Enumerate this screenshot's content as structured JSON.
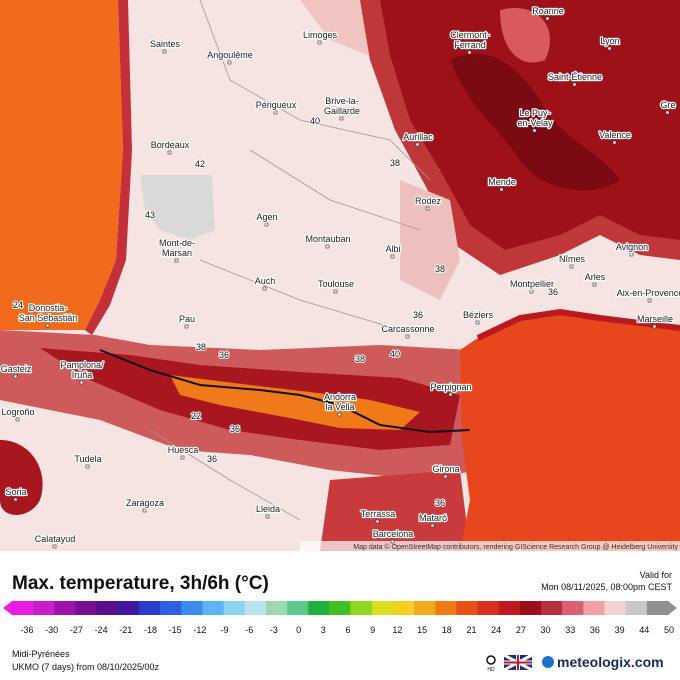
{
  "map": {
    "cities": [
      [
        "Saintes"
      ],
      [
        "Angoulême"
      ],
      [
        "Limoges"
      ],
      [
        "Clermont-",
        "Ferrand"
      ],
      [
        "Roanne"
      ],
      [
        "Lyon"
      ],
      [
        "Saint-Étienne"
      ],
      [
        "Périgueux"
      ],
      [
        "Brive-la-",
        "Gaillarde"
      ],
      [
        "Le Puy-",
        "en-Velay"
      ],
      [
        "Aurillac"
      ],
      [
        "Valence"
      ],
      [
        "Bordeaux"
      ],
      [
        "Mende"
      ],
      [
        "Rodez"
      ],
      [
        "Agen"
      ],
      [
        "Mont-de-",
        "Marsan"
      ],
      [
        "Montauban"
      ],
      [
        "Albi"
      ],
      [
        "Avignon"
      ],
      [
        "Nîmes"
      ],
      [
        "Auch"
      ],
      [
        "Toulouse"
      ],
      [
        "Montpellier"
      ],
      [
        "Arles"
      ],
      [
        "Aix-en-Provence"
      ],
      [
        "Donostia-",
        "San Sebastián"
      ],
      [
        "Pau"
      ],
      [
        "Béziers"
      ],
      [
        "Marseille"
      ],
      [
        "Carcassonne"
      ],
      [
        "Gasteiz"
      ],
      [
        "Pamplona/",
        "Iruña"
      ],
      [
        "Perpignan"
      ],
      [
        "Logroño"
      ],
      [
        "Andorra",
        "la Vella"
      ],
      [
        "Huesca"
      ],
      [
        "Girona"
      ],
      [
        "Tudela"
      ],
      [
        "Soria"
      ],
      [
        "Zaragoza"
      ],
      [
        "Lleida"
      ],
      [
        "Terrassa"
      ],
      [
        "Mataró"
      ],
      [
        "Barcelona"
      ],
      [
        "Calatayud"
      ],
      [
        "Gre"
      ]
    ],
    "values": [
      40,
      42,
      43,
      38,
      38,
      38,
      36,
      38,
      40,
      22,
      36,
      36,
      24,
      36,
      36,
      36
    ],
    "attribution": "Map data © OpenStreetMap contributors, rendering GIScience Research Group @ Heidelberg University"
  },
  "legend": {
    "title": "Max. temperature, 3h/6h (°C)",
    "valid_label": "Valid for",
    "valid_time": "Mon 08/11/2025, 08:00pm CEST",
    "ticks": [
      -36,
      -30,
      -27,
      -24,
      -21,
      -18,
      -15,
      -12,
      -9,
      -6,
      -3,
      0,
      3,
      6,
      9,
      12,
      15,
      18,
      21,
      24,
      27,
      30,
      33,
      36,
      39,
      44,
      50
    ],
    "colors": [
      "#e81ee8",
      "#c81ec8",
      "#9b16a8",
      "#7a1096",
      "#5a0f8c",
      "#3b1a9e",
      "#2a3cc8",
      "#2f62e0",
      "#3c8cf0",
      "#5fb4f5",
      "#8fd0f5",
      "#b8e4f0",
      "#9ed8b0",
      "#5cc88a",
      "#20b040",
      "#40c020",
      "#90d820",
      "#d8e020",
      "#f5d020",
      "#f5a818",
      "#f07a18",
      "#e8501a",
      "#d8301c",
      "#c01820",
      "#9a1018",
      "#b83040",
      "#d86070",
      "#f0a0a8",
      "#f5d0d0",
      "#c8c8c8",
      "#909090"
    ]
  },
  "footer": {
    "region": "Midi-Pyrénées",
    "model": "UKMO (7 days) from 08/10/2025/00z",
    "hd": "HD",
    "brand": "meteologix.com"
  }
}
